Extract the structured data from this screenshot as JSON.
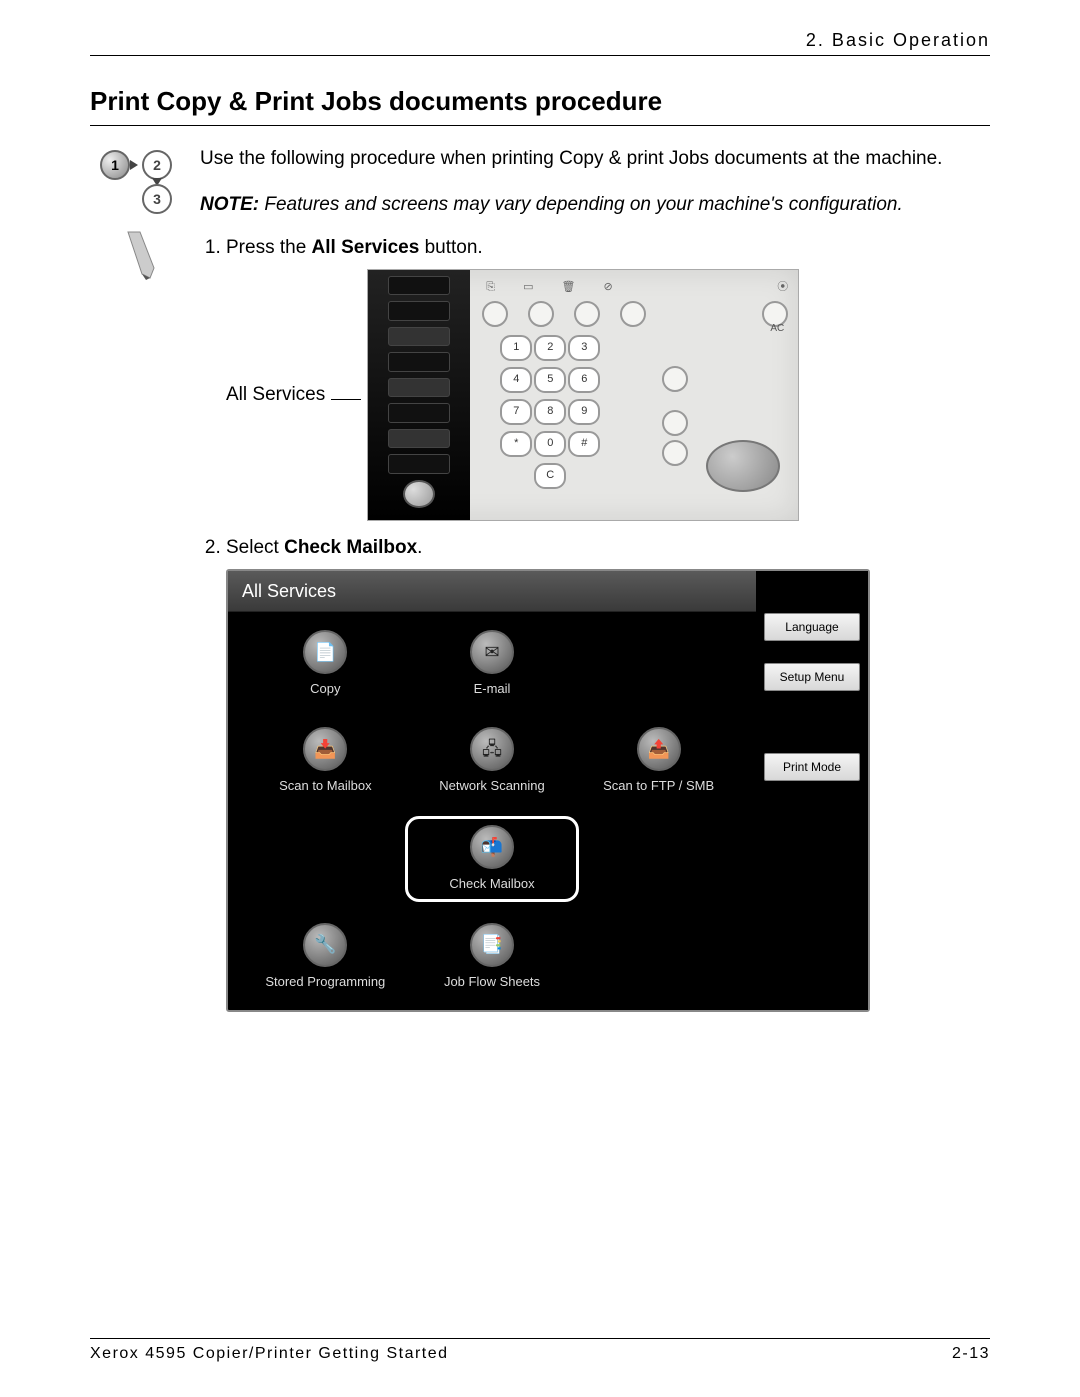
{
  "header": {
    "chapter": "2. Basic Operation"
  },
  "title": "Print Copy & Print Jobs documents procedure",
  "intro": "Use the following procedure when printing Copy & print Jobs documents at the machine.",
  "note_label": "NOTE:",
  "note_text": " Features and screens may vary depending on your machine's configuration.",
  "step1_pre": "Press the ",
  "step1_bold": "All Services",
  "step1_post": " button.",
  "panel_label": "All Services",
  "keypad": {
    "keys": [
      "1",
      "2",
      "3",
      "4",
      "5",
      "6",
      "7",
      "8",
      "9",
      "*",
      "0",
      "#",
      "",
      "C",
      ""
    ],
    "ac": "AC"
  },
  "step2_pre": "Select ",
  "step2_bold": "Check Mailbox",
  "step2_post": ".",
  "as_screen": {
    "title": "All Services",
    "items": [
      {
        "label": "Copy",
        "glyph": "📄"
      },
      {
        "label": "E-mail",
        "glyph": "✉"
      },
      {
        "label": "",
        "glyph": ""
      },
      {
        "label": "Scan to Mailbox",
        "glyph": "📥"
      },
      {
        "label": "Network Scanning",
        "glyph": "🖧"
      },
      {
        "label": "Scan to FTP / SMB",
        "glyph": "📤"
      },
      {
        "label": "",
        "glyph": ""
      },
      {
        "label": "Check Mailbox",
        "glyph": "📬",
        "highlight": true
      },
      {
        "label": "",
        "glyph": ""
      },
      {
        "label": "Stored Programming",
        "glyph": "🔧"
      },
      {
        "label": "Job Flow Sheets",
        "glyph": "📑"
      },
      {
        "label": "",
        "glyph": ""
      }
    ],
    "side": [
      "Language",
      "Setup Menu",
      "Print Mode"
    ]
  },
  "footer": {
    "left": "Xerox 4595 Copier/Printer Getting Started",
    "right": "2-13"
  }
}
